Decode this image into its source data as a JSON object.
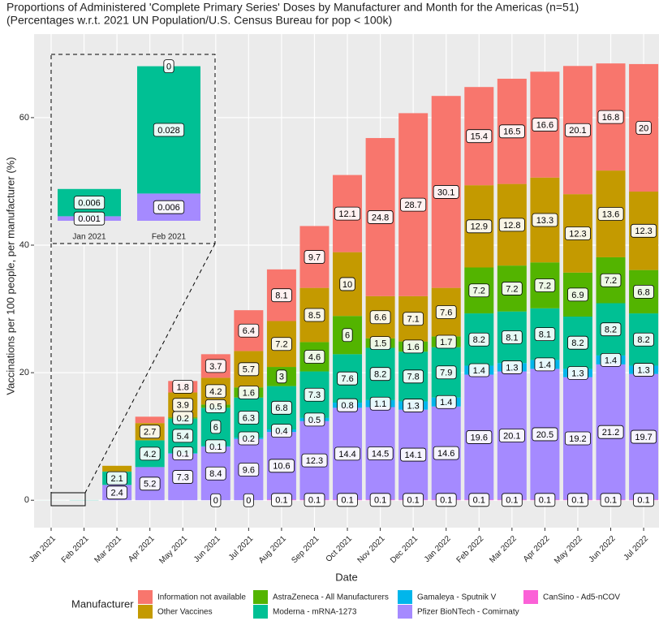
{
  "chart_data": {
    "type": "stacked-bar",
    "title": "Proportions of Administered 'Complete Primary Series' Doses by Manufacturer and Month for the Americas (n=51)",
    "subtitle": "(Percentages w.r.t. 2021 UN Population/U.S. Census Bureau for pop < 100k)",
    "x_label": "Date",
    "y_label": "Vaccinations per 100 people, per manufacturer (%)",
    "legend_title": "Manufacturer",
    "categories": [
      "Jan 2021",
      "Feb 2021",
      "Mar 2021",
      "Apr 2021",
      "May 2021",
      "Jun 2021",
      "Jul 2021",
      "Aug 2021",
      "Sep 2021",
      "Oct 2021",
      "Nov 2021",
      "Dec 2021",
      "Jan 2022",
      "Feb 2022",
      "Mar 2022",
      "Apr 2022",
      "May 2022",
      "Jun 2022",
      "Jul 2022"
    ],
    "ylim": [
      -4.3,
      73.1
    ],
    "yticks": [
      0,
      20,
      40,
      60
    ],
    "grid": true,
    "series": [
      {
        "name": "CanSino - Ad5-nCOV",
        "color": "#FB61D7",
        "values": [
          0,
          0,
          0,
          0,
          0,
          0,
          0,
          0.1,
          0.1,
          0.1,
          0.1,
          0.1,
          0.1,
          0.1,
          0.1,
          0.1,
          0.1,
          0.1,
          0.1
        ],
        "value_labels": [
          null,
          null,
          null,
          null,
          null,
          "0",
          "0",
          "0.1",
          "0.1",
          "0.1",
          "0.1",
          "0.1",
          "0.1",
          "0.1",
          "0.1",
          "0.1",
          "0.1",
          "0.1",
          "0.1"
        ]
      },
      {
        "name": "Pfizer BioNTech - Comirnaty",
        "color": "#A58AFF",
        "values": [
          0.001,
          0.006,
          2.4,
          5.2,
          7.3,
          8.4,
          9.6,
          10.6,
          12.3,
          14.4,
          14.5,
          14.1,
          14.6,
          19.6,
          20.1,
          20.5,
          19.2,
          21.2,
          19.7
        ],
        "value_labels": [
          "0.001",
          "0.006",
          "2.4",
          "5.2",
          "7.3",
          "8.4",
          "9.6",
          "10.6",
          "12.3",
          "14.4",
          "14.5",
          "14.1",
          "14.6",
          "19.6",
          "20.1",
          "20.5",
          "19.2",
          "21.2",
          "19.7"
        ]
      },
      {
        "name": "Gamaleya - Sputnik V",
        "color": "#00B6EB",
        "values": [
          0,
          0,
          0,
          0,
          0.1,
          0.1,
          0.2,
          0.4,
          0.5,
          0.8,
          1.1,
          1.3,
          1.4,
          1.4,
          1.3,
          1.4,
          1.3,
          1.4,
          1.3
        ],
        "value_labels": [
          null,
          null,
          null,
          null,
          "0.1",
          "0.1",
          "0.2",
          "0.4",
          "0.5",
          "0.8",
          "1.1",
          "1.3",
          "1.4",
          "1.4",
          "1.3",
          "1.4",
          "1.3",
          "1.4",
          "1.3"
        ]
      },
      {
        "name": "Moderna - mRNA-1273",
        "color": "#00C094",
        "values": [
          0.006,
          0.028,
          2.1,
          4.2,
          5.4,
          6,
          6.3,
          6.8,
          7.3,
          7.6,
          8.2,
          7.8,
          7.9,
          8.2,
          8.1,
          8.1,
          8.2,
          8.2,
          8.2
        ],
        "value_labels": [
          "0.006",
          "0.028",
          "2.1",
          "4.2",
          "5.4",
          "6",
          "6.3",
          "6.8",
          "7.3",
          "7.6",
          "8.2",
          "7.8",
          "7.9",
          "8.2",
          "8.1",
          "8.1",
          "8.2",
          "8.2",
          "8.2"
        ]
      },
      {
        "name": "AstraZeneca - All Manufacturers",
        "color": "#53B400",
        "values": [
          0,
          0,
          0,
          0,
          0.2,
          0.5,
          1.6,
          3,
          4.6,
          6,
          1.5,
          1.6,
          1.7,
          7.2,
          7.2,
          7.2,
          6.9,
          7.2,
          6.8
        ],
        "value_labels": [
          null,
          null,
          null,
          null,
          "0.2",
          "0.5",
          "1.6",
          "3",
          "4.6",
          "6",
          "1.5",
          "1.6",
          "1.7",
          "7.2",
          "7.2",
          "7.2",
          "6.9",
          "7.2",
          "6.8"
        ]
      },
      {
        "name": "Other Vaccines",
        "color": "#C49A00",
        "values": [
          0,
          0,
          0.9,
          2.7,
          3.9,
          4.2,
          5.7,
          7.2,
          8.5,
          10,
          6.6,
          7.1,
          7.6,
          12.9,
          12.8,
          13.3,
          12.3,
          13.6,
          12.3
        ],
        "value_labels": [
          null,
          null,
          null,
          "2.7",
          "3.9",
          "4.2",
          "5.7",
          "7.2",
          "8.5",
          "10",
          "6.6",
          "7.1",
          "7.6",
          "12.9",
          "12.8",
          "13.3",
          "12.3",
          "13.6",
          "12.3"
        ]
      },
      {
        "name": "Information not available",
        "color": "#F8766D",
        "values": [
          0,
          0,
          0,
          1,
          1.8,
          3.7,
          6.4,
          8.1,
          9.7,
          12.1,
          24.8,
          28.7,
          30.1,
          15.4,
          16.5,
          16.6,
          20.1,
          16.8,
          20
        ],
        "value_labels": [
          null,
          "0",
          null,
          null,
          "1.8",
          "3.7",
          "6.4",
          "8.1",
          "9.7",
          "12.1",
          "24.8",
          "28.7",
          "30.1",
          "15.4",
          "16.5",
          "16.6",
          "20.1",
          "16.8",
          "20"
        ]
      }
    ]
  }
}
